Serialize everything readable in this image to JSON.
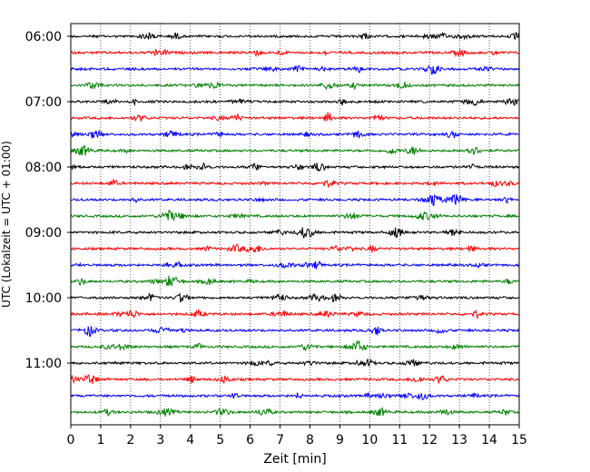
{
  "chart_data": {
    "type": "line",
    "title": "",
    "xlabel": "Zeit  [min]",
    "ylabel": "UTC (Lokalzeit = UTC + 01:00)",
    "xlim": [
      0,
      15
    ],
    "x_ticks": [
      "0",
      "1",
      "2",
      "3",
      "4",
      "5",
      "6",
      "7",
      "8",
      "9",
      "10",
      "11",
      "12",
      "13",
      "14",
      "15"
    ],
    "y_tick_labels": [
      "06:00",
      "07:00",
      "08:00",
      "09:00",
      "10:00",
      "11:00"
    ],
    "grid": "vertical dotted lines at each minute",
    "trace_colors": [
      "#000000",
      "#ff0000",
      "#0000ff",
      "#008000"
    ],
    "trace_interval_minutes": 15,
    "start_time": "06:00",
    "series": [
      {
        "start": "06:00",
        "color": "#000000"
      },
      {
        "start": "06:15",
        "color": "#ff0000"
      },
      {
        "start": "06:30",
        "color": "#0000ff"
      },
      {
        "start": "06:45",
        "color": "#008000"
      },
      {
        "start": "07:00",
        "color": "#000000"
      },
      {
        "start": "07:15",
        "color": "#ff0000"
      },
      {
        "start": "07:30",
        "color": "#0000ff"
      },
      {
        "start": "07:45",
        "color": "#008000"
      },
      {
        "start": "08:00",
        "color": "#000000"
      },
      {
        "start": "08:15",
        "color": "#ff0000"
      },
      {
        "start": "08:30",
        "color": "#0000ff"
      },
      {
        "start": "08:45",
        "color": "#008000"
      },
      {
        "start": "09:00",
        "color": "#000000"
      },
      {
        "start": "09:15",
        "color": "#ff0000"
      },
      {
        "start": "09:30",
        "color": "#0000ff"
      },
      {
        "start": "09:45",
        "color": "#008000"
      },
      {
        "start": "10:00",
        "color": "#000000"
      },
      {
        "start": "10:15",
        "color": "#ff0000"
      },
      {
        "start": "10:30",
        "color": "#0000ff"
      },
      {
        "start": "10:45",
        "color": "#008000"
      },
      {
        "start": "11:00",
        "color": "#000000"
      },
      {
        "start": "11:15",
        "color": "#ff0000"
      },
      {
        "start": "11:30",
        "color": "#0000ff"
      },
      {
        "start": "11:45",
        "color": "#008000"
      }
    ]
  }
}
